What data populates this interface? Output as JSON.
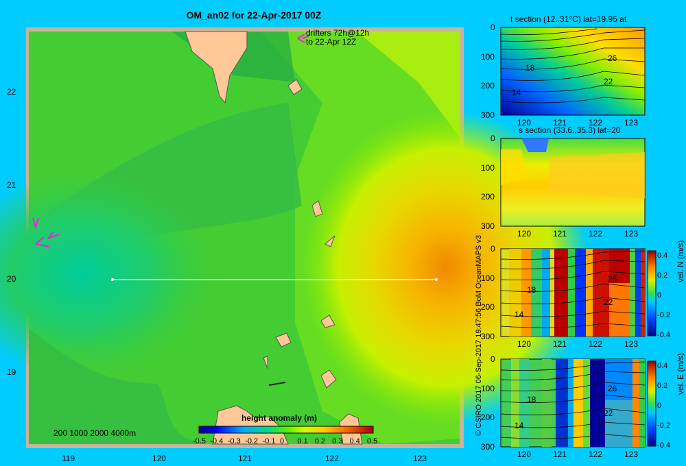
{
  "title": "OM_an02 for 22-Apr-2017 00Z",
  "main_map": {
    "lat_ticks": [
      "22",
      "21",
      "20",
      "19"
    ],
    "lon_ticks": [
      "119",
      "120",
      "121",
      "122",
      "123"
    ],
    "drifter_note_line1": "drifters 72h@12h",
    "drifter_note_line2": "to 22-Apr 12Z",
    "scale_bar": "200  1000  2000  4000m",
    "colorbar_title": "height anomaly (m)",
    "colorbar_ticks": [
      "-0.5",
      "-0.4",
      "-0.3",
      "-0.2",
      "-0.1",
      "0",
      "0.1",
      "0.2",
      "0.3",
      "0.4",
      "0.5"
    ],
    "section_lat": 20,
    "section_lon_range": [
      119.5,
      123.2
    ]
  },
  "panels": [
    {
      "id": "t",
      "title": "t section (12..31°C) lat=19.95 at",
      "depth_ticks": [
        "0",
        "100",
        "200",
        "300"
      ],
      "lon_ticks": [
        "120",
        "121",
        "122",
        "123"
      ],
      "contour_labels": [
        "18",
        "14",
        "26",
        "22"
      ]
    },
    {
      "id": "s",
      "title": "s section (33.6..35.3) lat=20",
      "depth_ticks": [
        "0",
        "100",
        "200",
        "300"
      ],
      "lon_ticks": [
        "120",
        "121",
        "122",
        "123"
      ]
    },
    {
      "id": "vn",
      "depth_ticks": [
        "0",
        "100",
        "200",
        "300"
      ],
      "lon_ticks": [
        "120",
        "121",
        "122",
        "123"
      ],
      "contour_labels": [
        "18",
        "14",
        "26",
        "22"
      ],
      "cbar_ticks": [
        "0.4",
        "0.2",
        "0",
        "-0.2",
        "-0.4"
      ],
      "cbar_label": "vel. N (m/s)"
    },
    {
      "id": "ve",
      "depth_ticks": [
        "0",
        "100",
        "200",
        "300"
      ],
      "lon_ticks": [
        "120",
        "121",
        "122",
        "123"
      ],
      "contour_labels": [
        "18",
        "14",
        "26",
        "22"
      ],
      "cbar_ticks": [
        "0.4",
        "0.2",
        "0",
        "-0.2",
        "-0.4"
      ],
      "cbar_label": "vel. E (m/s)"
    }
  ],
  "credit": "© CSIRO 2017   06-Sep-2017 19:47:56 BoM OceanMAPS v3"
}
